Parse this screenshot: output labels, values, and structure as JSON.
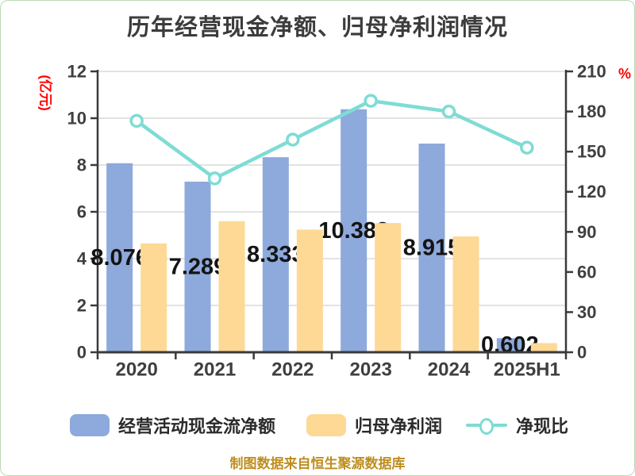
{
  "title": "历年经营现金净额、归母净利润情况",
  "footer": "制图数据来自恒生聚源数据库",
  "left_axis": {
    "unit": "(亿元)",
    "ticks": [
      0,
      2,
      4,
      6,
      8,
      10,
      12
    ],
    "max": 12
  },
  "right_axis": {
    "unit": "%",
    "ticks": [
      0,
      30,
      60,
      90,
      120,
      150,
      180,
      210
    ],
    "max": 210
  },
  "legend": [
    {
      "label": "经营活动现金流净额",
      "type": "bar",
      "color_key": "bar_cash"
    },
    {
      "label": "归母净利润",
      "type": "bar",
      "color_key": "bar_profit"
    },
    {
      "label": "净现比",
      "type": "line",
      "color_key": "line_ratio"
    }
  ],
  "colors": {
    "bar_cash": "#8ea9db",
    "bar_profit": "#fdd995",
    "line_ratio": "#7edcd4",
    "marker_fill": "#ffffff",
    "grid": "#d2d2d2",
    "axis": "#3a3a3a",
    "tick_text": "#3f3f3f",
    "data_label": "#141414",
    "axis_unit": "#ff0000",
    "title_text": "#3c3c3c",
    "legend_text": "#2a2a2a",
    "footer_text": "#be8e1e",
    "frame_border": "#bcd9b6"
  },
  "chart_data": {
    "type": "bar+line",
    "categories": [
      "2020",
      "2021",
      "2022",
      "2023",
      "2024",
      "2025H1"
    ],
    "series": [
      {
        "name": "经营活动现金流净额",
        "type": "bar",
        "axis": "left",
        "values": [
          8.076,
          7.289,
          8.333,
          10.382,
          8.915,
          0.602
        ],
        "labels": [
          "8.076",
          "7.289",
          "8.333",
          "10.382",
          "8.915",
          "0.602"
        ],
        "labels_shown": true
      },
      {
        "name": "归母净利润",
        "type": "bar",
        "axis": "left",
        "values": [
          4.65,
          5.6,
          5.24,
          5.52,
          4.95,
          0.39
        ],
        "labels_shown": false
      },
      {
        "name": "净现比",
        "type": "line",
        "axis": "right",
        "values": [
          173,
          130,
          159,
          188,
          180,
          153
        ],
        "labels_shown": false
      }
    ],
    "left_ylim": [
      0,
      12
    ],
    "right_ylim": [
      0,
      210
    ],
    "grid": true,
    "legend_position": "bottom"
  }
}
